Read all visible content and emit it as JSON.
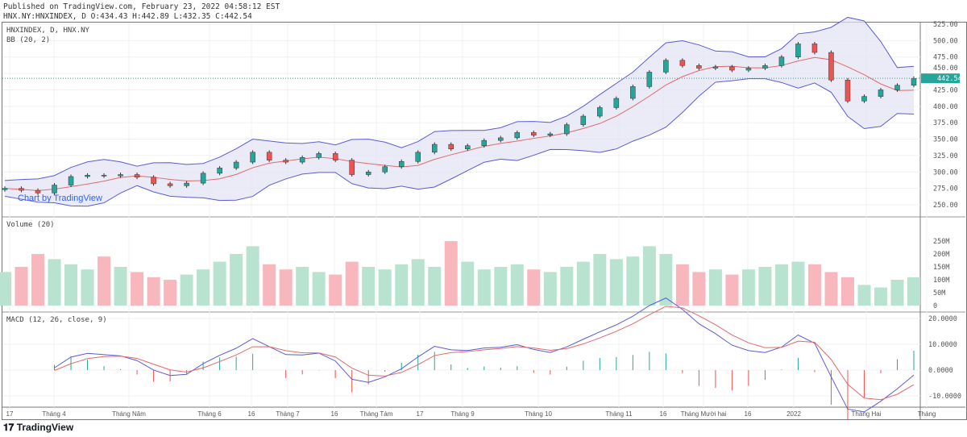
{
  "header": {
    "published": "Published on TradingView.com, February 23, 2022 04:58:12 EST",
    "ohlc": "HNX.NY:HNXINDEX, D O:434.43 H:442.89 L:432.35 C:442.54"
  },
  "legend": {
    "symbol": "HNXINDEX, D, HNX.NY",
    "bb": "BB (20, 2)",
    "volume": "Volume (20)",
    "macd": "MACD (12, 26, close, 9)"
  },
  "watermark": "Chart by TradingView",
  "logo": "TradingView",
  "colors": {
    "up": "#26a69a",
    "down": "#ef5350",
    "bb_fill": "#e3e3f5",
    "bb_band": "#5b5bd6",
    "bb_basis": "#e06b6b",
    "macd": "#5b5bd6",
    "signal": "#e06b6b"
  },
  "chart_data": [
    {
      "type": "candlestick",
      "title": "HNXINDEX, D, HNX.NY",
      "ylim": [
        240,
        530
      ],
      "y_ticks": [
        "525.00",
        "500.00",
        "475.00",
        "450.00",
        "425.00",
        "400.00",
        "375.00",
        "350.00",
        "325.00",
        "300.00",
        "275.00",
        "250.00"
      ],
      "last_price": "442.54",
      "closes": [
        275,
        272,
        268,
        280,
        293,
        295,
        294,
        296,
        292,
        282,
        279,
        283,
        298,
        306,
        315,
        330,
        318,
        315,
        322,
        328,
        318,
        296,
        300,
        308,
        316,
        330,
        342,
        335,
        340,
        348,
        352,
        360,
        356,
        358,
        372,
        385,
        398,
        412,
        430,
        452,
        470,
        462,
        458,
        460,
        455,
        458,
        462,
        475,
        495,
        482,
        440,
        408,
        415,
        425,
        432,
        442.54
      ]
    },
    {
      "type": "bar",
      "title": "Volume (20)",
      "ylim": [
        0,
        270
      ],
      "y_ticks": [
        "250M",
        "200M",
        "150M",
        "100M",
        "50M",
        "0"
      ],
      "values": [
        130,
        150,
        200,
        180,
        160,
        140,
        190,
        150,
        130,
        110,
        100,
        120,
        140,
        170,
        200,
        230,
        160,
        140,
        150,
        130,
        120,
        170,
        150,
        140,
        160,
        180,
        150,
        250,
        170,
        140,
        150,
        160,
        140,
        130,
        150,
        170,
        200,
        180,
        190,
        230,
        200,
        160,
        130,
        140,
        120,
        140,
        150,
        160,
        170,
        160,
        130,
        110,
        80,
        70,
        100,
        110
      ]
    },
    {
      "type": "line",
      "title": "MACD (12, 26, close, 9)",
      "ylim": [
        -12,
        22
      ],
      "y_ticks": [
        "20.0000",
        "10.0000",
        "0.0000",
        "-10.0000"
      ]
    }
  ],
  "x_ticks": [
    "17",
    "Tháng 4",
    "Tháng Năm",
    "Tháng 6",
    "16",
    "Tháng 7",
    "16",
    "Tháng Tám",
    "17",
    "Tháng 9",
    "Tháng 10",
    "Tháng 11",
    "16",
    "Tháng Mười hai",
    "16",
    "2022",
    "Tháng Hai",
    "Tháng"
  ]
}
